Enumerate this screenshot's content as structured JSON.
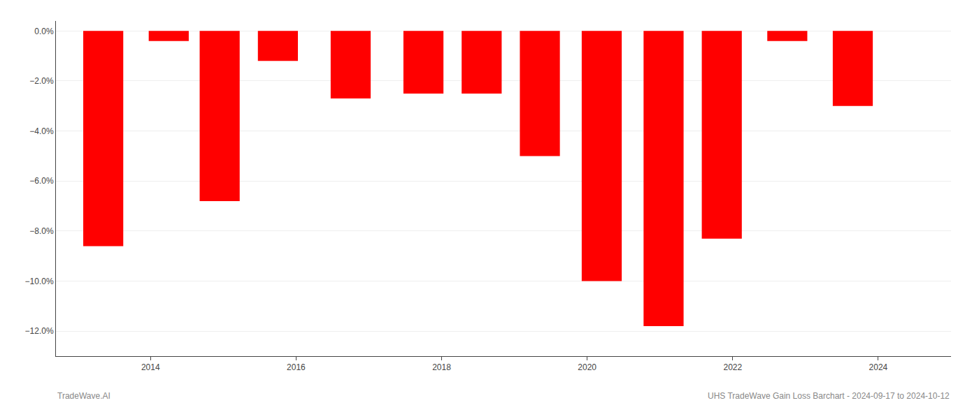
{
  "chart_data": {
    "type": "bar",
    "x": [
      2013.35,
      2014.25,
      2014.95,
      2015.75,
      2016.75,
      2017.75,
      2018.55,
      2019.35,
      2020.2,
      2021.05,
      2021.85,
      2022.75,
      2023.65
    ],
    "values": [
      -8.6,
      -0.4,
      -6.8,
      -1.2,
      -2.7,
      -2.5,
      -2.5,
      -5.0,
      -10.0,
      -11.8,
      -8.3,
      -0.4,
      -3.0
    ],
    "color": "#ff0000",
    "xlim": [
      2012.7,
      2025.0
    ],
    "xticks": [
      2014,
      2016,
      2018,
      2020,
      2022,
      2024
    ],
    "ylim": [
      -13.0,
      0.4
    ],
    "yticks": [
      {
        "value": 0.0,
        "label": "0.0%"
      },
      {
        "value": -2.0,
        "label": "−2.0%"
      },
      {
        "value": -4.0,
        "label": "−4.0%"
      },
      {
        "value": -6.0,
        "label": "−6.0%"
      },
      {
        "value": -8.0,
        "label": "−8.0%"
      },
      {
        "value": -10.0,
        "label": "−10.0%"
      },
      {
        "value": -12.0,
        "label": "−12.0%"
      }
    ],
    "grid": "y",
    "annotations": [
      "TradeWave.AI",
      "UHS TradeWave Gain Loss Barchart - 2024-09-17 to 2024-10-12"
    ]
  }
}
